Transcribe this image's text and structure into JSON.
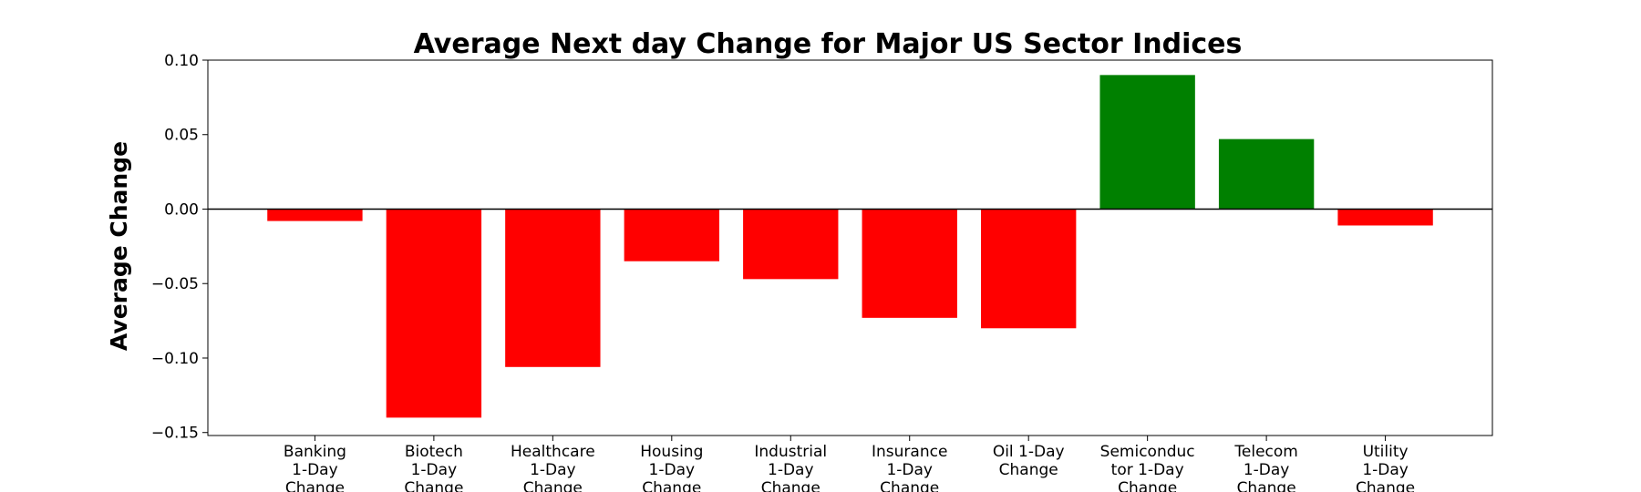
{
  "chart_data": {
    "type": "bar",
    "title": "Average Next day Change for Major US Sector Indices",
    "xlabel": "",
    "ylabel": "Average Change",
    "ylim": [
      -0.152,
      0.1
    ],
    "yticks": [
      0.1,
      0.05,
      0.0,
      -0.05,
      -0.1,
      -0.15
    ],
    "ytick_labels": [
      "0.10",
      "0.05",
      "0.00",
      "−0.05",
      "−0.10",
      "−0.15"
    ],
    "categories": [
      "Banking 1-Day Change",
      "Biotech 1-Day Change",
      "Healthcare 1-Day Change",
      "Housing 1-Day Change",
      "Industrial 1-Day Change",
      "Insurance 1-Day Change",
      "Oil 1-Day Change",
      "Semiconductor 1-Day Change",
      "Telecom 1-Day Change",
      "Utility 1-Day Change"
    ],
    "category_label_lines": [
      [
        "Banking",
        "1-Day",
        "Change"
      ],
      [
        "Biotech",
        "1-Day",
        "Change"
      ],
      [
        "Healthcare",
        "1-Day",
        "Change"
      ],
      [
        "Housing",
        "1-Day",
        "Change"
      ],
      [
        "Industrial",
        "1-Day",
        "Change"
      ],
      [
        "Insurance",
        "1-Day",
        "Change"
      ],
      [
        "Oil 1-Day",
        "Change"
      ],
      [
        "Semiconduc",
        "tor 1-Day",
        "Change"
      ],
      [
        "Telecom",
        "1-Day",
        "Change"
      ],
      [
        "Utility",
        "1-Day",
        "Change"
      ]
    ],
    "values": [
      -0.008,
      -0.14,
      -0.106,
      -0.035,
      -0.047,
      -0.073,
      -0.08,
      0.09,
      0.047,
      -0.011
    ],
    "colors": {
      "positive": "#008000",
      "negative": "#ff0000",
      "zero_line": "#000000"
    },
    "grid": false,
    "legend": "none"
  }
}
